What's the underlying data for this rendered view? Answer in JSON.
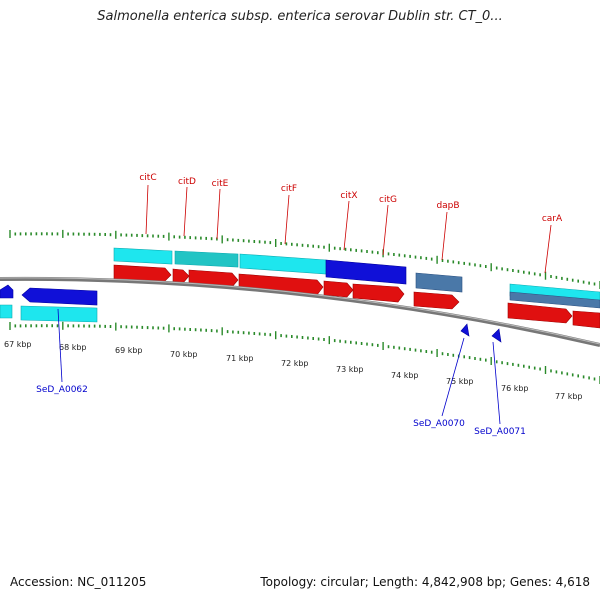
{
  "title": "Salmonella enterica subsp. enterica serovar Dublin str. CT_0...",
  "accession": "Accession: NC_011205",
  "summary": "Topology: circular; Length: 4,842,908 bp; Genes: 4,618",
  "colors": {
    "gene_label_top": "#cc0000",
    "gene_label_bottom": "#0000cc",
    "cyan": "#1ee6ee",
    "blue": "#1010d8",
    "red": "#e01010",
    "steel": "#4a78a8",
    "tick": "#2a8a2a",
    "backbone": "#888888"
  },
  "ruler": {
    "labels": [
      "67 kbp",
      "68 kbp",
      "69 kbp",
      "70 kbp",
      "71 kbp",
      "72 kbp",
      "73 kbp",
      "74 kbp",
      "75 kbp",
      "76 kbp",
      "77 kbp"
    ]
  },
  "top_gene_labels": [
    "citC",
    "citD",
    "citE",
    "citF",
    "citX",
    "citG",
    "dapB",
    "carA"
  ],
  "bottom_gene_labels": [
    "SeD_A0062",
    "SeD_A0070",
    "SeD_A0071"
  ]
}
